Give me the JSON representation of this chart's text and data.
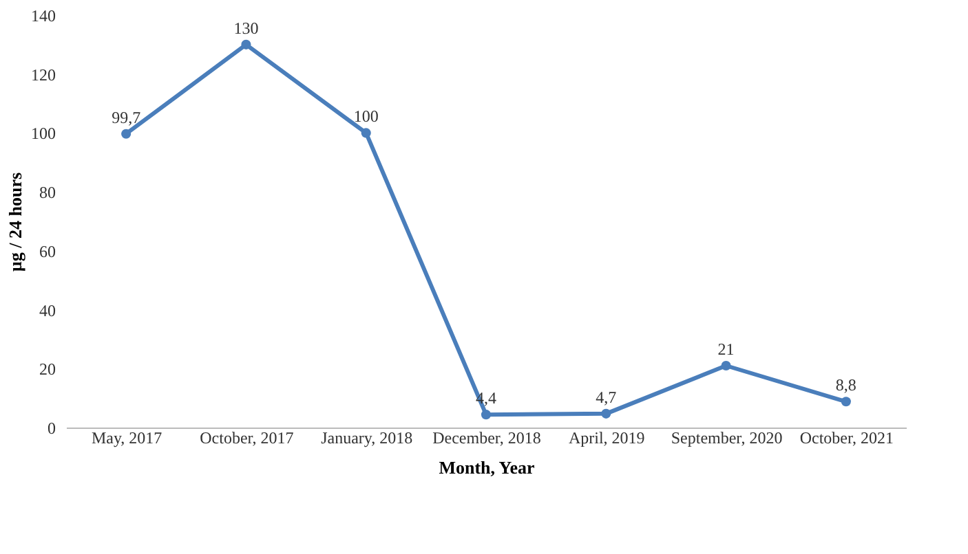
{
  "chart_data": {
    "type": "line",
    "xlabel": "Month, Year",
    "ylabel": "µg / 24 hours",
    "categories": [
      "May, 2017",
      "October, 2017",
      "January, 2018",
      "December, 2018",
      "April, 2019",
      "September, 2020",
      "October, 2021"
    ],
    "series": [
      {
        "color": "#4a7ebb",
        "values": [
          99.7,
          130,
          100,
          4.4,
          4.7,
          21,
          8.8
        ],
        "value_labels": [
          "99,7",
          "130",
          "100",
          "4,4",
          "4,7",
          "21",
          "8,8"
        ]
      }
    ],
    "ylim": [
      0,
      140
    ],
    "yticks": [
      0,
      20,
      40,
      60,
      80,
      100,
      120,
      140
    ],
    "marker": "circle",
    "grid": false,
    "legend": false
  }
}
